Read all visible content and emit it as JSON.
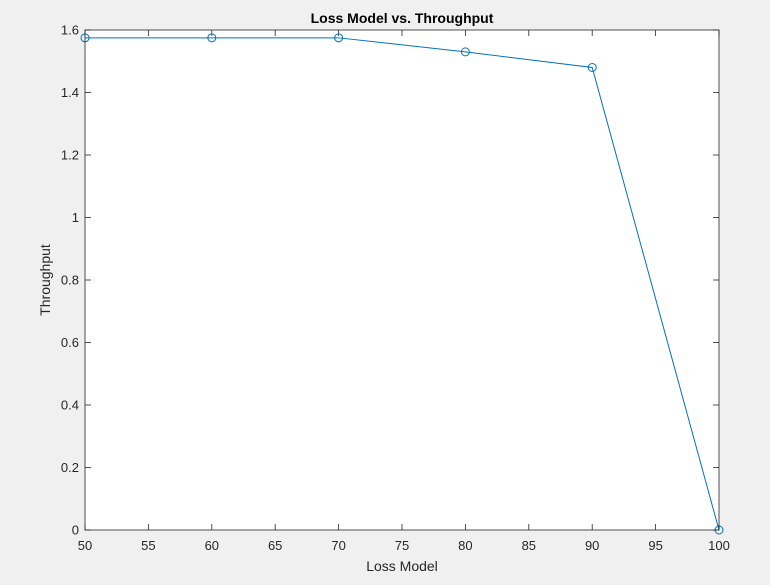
{
  "chart_data": {
    "type": "line",
    "title": "Loss Model vs. Throughput",
    "xlabel": "Loss Model",
    "ylabel": "Throughput",
    "xlim": [
      50,
      100
    ],
    "ylim": [
      0,
      1.6
    ],
    "xticks": [
      50,
      55,
      60,
      65,
      70,
      75,
      80,
      85,
      90,
      95,
      100
    ],
    "yticks": [
      0,
      0.2,
      0.4,
      0.6,
      0.8,
      1,
      1.2,
      1.4,
      1.6
    ],
    "grid": false,
    "series": [
      {
        "x": [
          50,
          60,
          70,
          80,
          90,
          100
        ],
        "y": [
          1.575,
          1.575,
          1.575,
          1.53,
          1.48,
          0
        ],
        "color": "#0072bd",
        "marker": "circle"
      }
    ]
  }
}
